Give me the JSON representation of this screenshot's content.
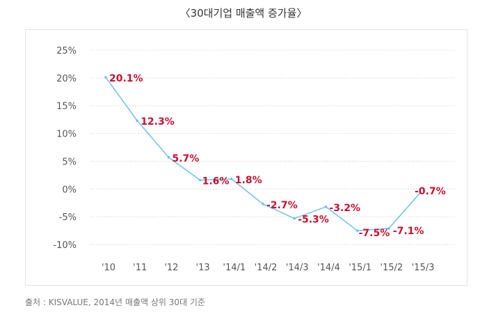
{
  "chart_data": {
    "type": "line",
    "title": "〈30대기업 매출액 증가율〉",
    "categories": [
      "'10",
      "'11",
      "'12",
      "'13",
      "'14/1",
      "'14/2",
      "'14/3",
      "'14/4",
      "'15/1",
      "'15/2",
      "'15/3"
    ],
    "series": [
      {
        "values": [
          20.1,
          12.3,
          5.7,
          1.6,
          1.8,
          -2.7,
          -5.3,
          -3.2,
          -7.5,
          -7.1,
          -0.7
        ],
        "labels": [
          "20.1%",
          "12.3%",
          "5.7%",
          "1.6%",
          "1.8%",
          "-2.7%",
          "-5.3%",
          "-3.2%",
          "-7.5%",
          "-7.1%",
          "-0.7%"
        ],
        "color": "#6ec1ee"
      }
    ],
    "ylim": [
      -10,
      25
    ],
    "yticks": [
      25,
      20,
      15,
      10,
      5,
      0,
      -5,
      -10
    ],
    "ytick_labels": [
      "25%",
      "20%",
      "15%",
      "10%",
      "5%",
      "0%",
      "-5%",
      "-10%"
    ],
    "grid": true,
    "grid_color": "#dddddd",
    "label_color": "#c8102e",
    "xlabel": "",
    "ylabel": ""
  },
  "source_text": "출처 : KISVALUE, 2014년 매출액 상위 30대 기준"
}
